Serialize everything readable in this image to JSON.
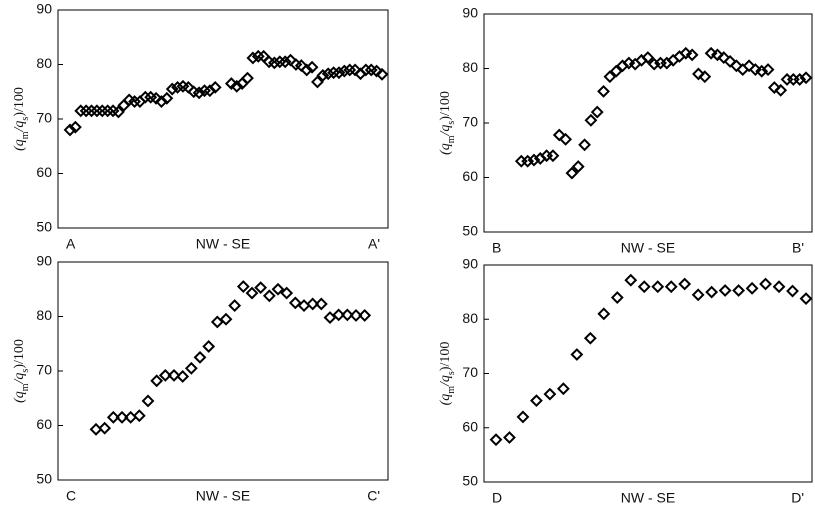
{
  "chart_data": [
    {
      "type": "scatter",
      "ylabel": [
        "(q",
        "m",
        "/q",
        "s",
        ")/100"
      ],
      "annotations": [
        "A",
        "NW - SE",
        "A'"
      ],
      "ylim": [
        50,
        90
      ],
      "yticks": [
        50,
        60,
        70,
        80,
        90
      ],
      "values": [
        68,
        68.5,
        71.5,
        71.5,
        71.5,
        71.5,
        71.5,
        71.5,
        71.5,
        71.3,
        72.5,
        73.5,
        73.2,
        73.2,
        74,
        74,
        73.8,
        73.2,
        73.8,
        75.5,
        75.8,
        76,
        75.8,
        75,
        74.8,
        75.2,
        75.2,
        75.8,
        null,
        null,
        76.5,
        76,
        76.5,
        77.5,
        81.2,
        81.5,
        81.5,
        80.5,
        80.3,
        80.5,
        80.5,
        80.8,
        80,
        79.8,
        79,
        79.5,
        76.8,
        78,
        78.3,
        78.5,
        78.5,
        78.8,
        79,
        79,
        78.3,
        79,
        79,
        78.8,
        78.2
      ]
    },
    {
      "type": "scatter",
      "ylabel": [
        "(q",
        "m",
        "/q",
        "s",
        ")/100"
      ],
      "annotations": [
        "B",
        "NW - SE",
        "B'"
      ],
      "ylim": [
        50,
        90
      ],
      "yticks": [
        50,
        60,
        70,
        80,
        90
      ],
      "values": [
        null,
        null,
        null,
        null,
        63,
        63,
        63.2,
        63.5,
        64,
        64,
        67.8,
        67,
        60.8,
        62,
        66,
        70.5,
        72,
        75.8,
        78.5,
        79.5,
        80.5,
        81,
        80.8,
        81.5,
        82,
        80.8,
        81,
        81,
        81.5,
        82.2,
        82.8,
        82.5,
        79,
        78.5,
        82.8,
        82.5,
        82,
        81.3,
        80.5,
        79.8,
        80.5,
        79.8,
        79.5,
        79.8,
        76.5,
        76,
        78,
        78,
        78,
        78.3
      ]
    },
    {
      "type": "scatter",
      "ylabel": [
        "(q",
        "m",
        "/q",
        "s",
        ")/100"
      ],
      "annotations": [
        "C",
        "NW - SE",
        "C'"
      ],
      "ylim": [
        50,
        90
      ],
      "yticks": [
        50,
        60,
        70,
        80,
        90
      ],
      "values": [
        null,
        null,
        null,
        59.3,
        59.5,
        61.5,
        61.5,
        61.5,
        61.8,
        64.5,
        68.2,
        69.2,
        69.2,
        69,
        70.5,
        72.5,
        74.5,
        79,
        79.5,
        82,
        85.5,
        84.3,
        85.3,
        83.8,
        85,
        84.3,
        82.5,
        82,
        82.3,
        82.3,
        79.8,
        80.3,
        80.3,
        80.2,
        80.2,
        null,
        null
      ]
    },
    {
      "type": "scatter",
      "ylabel": [
        "(q",
        "m",
        "/q",
        "s",
        ")/100"
      ],
      "annotations": [
        "D",
        "NW - SE",
        "D'"
      ],
      "ylim": [
        50,
        90
      ],
      "yticks": [
        50,
        60,
        70,
        80,
        90
      ],
      "values": [
        57.8,
        58.2,
        62,
        65,
        66.2,
        67.2,
        73.5,
        76.5,
        81,
        84,
        87.2,
        86,
        86,
        86,
        86.5,
        84.5,
        85,
        85.3,
        85.3,
        85.7,
        86.5,
        86,
        85.2,
        83.8
      ]
    }
  ]
}
